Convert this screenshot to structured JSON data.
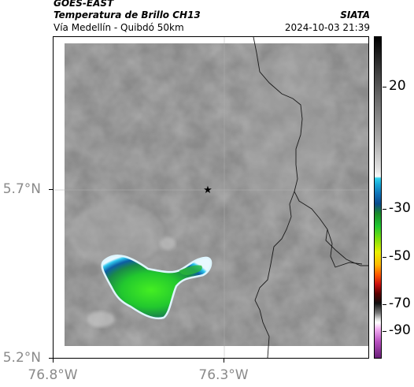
{
  "header": {
    "satellite": "GOES-EAST",
    "product": "Temperatura de Brillo CH13",
    "route": "Vía Medellín - Quibdó 50km",
    "agency": "SIATA",
    "timestamp": "2024-10-03 21:39"
  },
  "map": {
    "lat_labels": [
      "5.7°N",
      "5.2°N"
    ],
    "lon_labels": [
      "76.8°W",
      "76.3°W"
    ],
    "marker": "star-marker"
  },
  "colorbar": {
    "tick_labels": [
      "20",
      "-30",
      "-50",
      "-70",
      "-90"
    ]
  },
  "colors": {
    "background_cloud": "#8c8c8c",
    "deep_convection": "#20c830",
    "cold_edge": "#0a4a8c",
    "boundary_line": "#1a1a1a"
  }
}
